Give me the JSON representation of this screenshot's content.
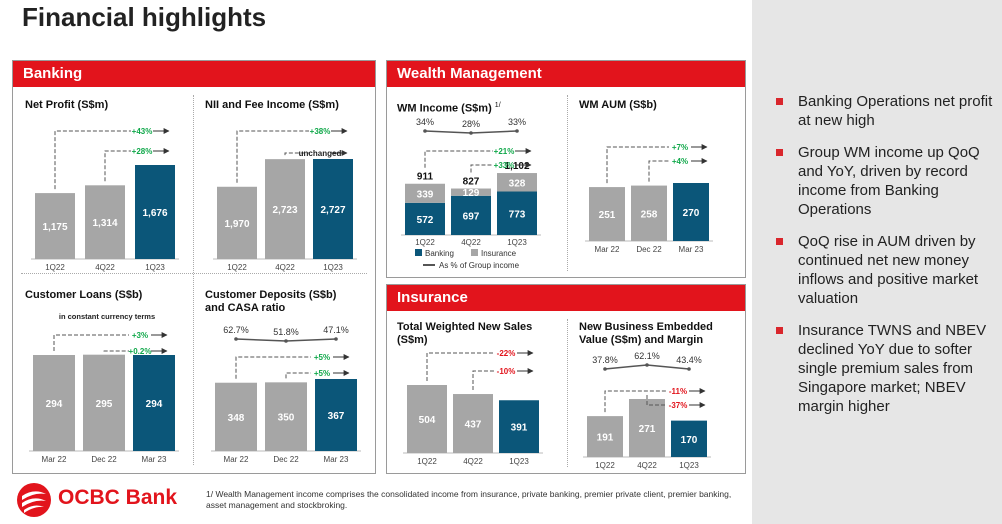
{
  "page": {
    "title": "Financial highlights"
  },
  "banking": {
    "header": "Banking",
    "net_profit": {
      "title": "Net Profit (S$m)",
      "categories": [
        "1Q22",
        "4Q22",
        "1Q23"
      ],
      "values": [
        1175,
        1314,
        1676
      ],
      "value_labels": [
        "1,175",
        "1,314",
        "1,676"
      ],
      "annotations": [
        "+43%",
        "+28%"
      ]
    },
    "nii_fee": {
      "title": "NII and Fee Income (S$m)",
      "categories": [
        "1Q22",
        "4Q22",
        "1Q23"
      ],
      "values": [
        1970,
        2723,
        2727
      ],
      "value_labels": [
        "1,970",
        "2,723",
        "2,727"
      ],
      "annotations": [
        "+38%",
        "unchanged"
      ]
    },
    "customer_loans": {
      "title": "Customer Loans (S$b)",
      "note": "in constant currency terms",
      "categories": [
        "Mar 22",
        "Dec 22",
        "Mar 23"
      ],
      "values": [
        294,
        295,
        294
      ],
      "value_labels": [
        "294",
        "295",
        "294"
      ],
      "annotations": [
        "+3%",
        "+0.2%"
      ]
    },
    "customer_deposits": {
      "title_line1": "Customer Deposits (S$b)",
      "title_line2": "and CASA ratio",
      "categories": [
        "Mar 22",
        "Dec 22",
        "Mar 23"
      ],
      "values": [
        348,
        350,
        367
      ],
      "value_labels": [
        "348",
        "350",
        "367"
      ],
      "casa_ratio_labels": [
        "62.7%",
        "51.8%",
        "47.1%"
      ],
      "annotations": [
        "+5%",
        "+5%"
      ]
    }
  },
  "wealth": {
    "header": "Wealth Management",
    "wm_income": {
      "title": "WM Income (S$m)",
      "footnote_mark": "1/",
      "categories": [
        "1Q22",
        "4Q22",
        "1Q23"
      ],
      "banking": [
        572,
        697,
        773
      ],
      "insurance": [
        339,
        129,
        328
      ],
      "banking_labels": [
        "572",
        "697",
        "773"
      ],
      "insurance_labels": [
        "339",
        "129",
        "328"
      ],
      "totals": [
        "911",
        "827",
        "1,102"
      ],
      "pct_of_group_labels": [
        "34%",
        "28%",
        "33%"
      ],
      "annotations": [
        "+21%",
        "+33%"
      ],
      "legend": {
        "banking": "Banking",
        "insurance": "Insurance",
        "pct": "As % of Group income"
      }
    },
    "wm_aum": {
      "title": "WM AUM (S$b)",
      "categories": [
        "Mar 22",
        "Dec 22",
        "Mar 23"
      ],
      "values": [
        251,
        258,
        270
      ],
      "value_labels": [
        "251",
        "258",
        "270"
      ],
      "annotations": [
        "+7%",
        "+4%"
      ]
    }
  },
  "insurance": {
    "header": "Insurance",
    "twns": {
      "title_line1": "Total Weighted New Sales",
      "title_line2": "(S$m)",
      "categories": [
        "1Q22",
        "4Q22",
        "1Q23"
      ],
      "values": [
        504,
        437,
        391
      ],
      "value_labels": [
        "504",
        "437",
        "391"
      ],
      "annotations": [
        "-22%",
        "-10%"
      ]
    },
    "nbev": {
      "title_line1": "New Business Embedded",
      "title_line2": "Value (S$m) and Margin",
      "categories": [
        "1Q22",
        "4Q22",
        "1Q23"
      ],
      "values": [
        191,
        271,
        170
      ],
      "value_labels": [
        "191",
        "271",
        "170"
      ],
      "margin_labels": [
        "37.8%",
        "62.1%",
        "43.4%"
      ],
      "annotations": [
        "-11%",
        "-37%"
      ]
    }
  },
  "sidebar": {
    "bullets": [
      "Banking Operations net profit at new high",
      "Group WM income up QoQ and YoY, driven by record income from Banking Operations",
      "QoQ rise in AUM driven by continued net new money inflows and positive market valuation",
      "Insurance TWNS and NBEV declined YoY due to softer single premium sales from Singapore market; NBEV margin higher"
    ]
  },
  "footer": {
    "logo_text": "OCBC Bank",
    "footnote": "1/ Wealth Management income comprises the consolidated income from insurance, private banking, premier private client, premier banking, asset management and stockbroking."
  },
  "colors": {
    "red": "#e2141c",
    "gray_bar": "#a6a6a6",
    "teal_bar": "#0b5679",
    "green": "#10a84a"
  },
  "chart_data": [
    {
      "type": "bar",
      "title": "Net Profit (S$m)",
      "categories": [
        "1Q22",
        "4Q22",
        "1Q23"
      ],
      "values": [
        1175,
        1314,
        1676
      ]
    },
    {
      "type": "bar",
      "title": "NII and Fee Income (S$m)",
      "categories": [
        "1Q22",
        "4Q22",
        "1Q23"
      ],
      "values": [
        1970,
        2723,
        2727
      ]
    },
    {
      "type": "bar",
      "title": "Customer Loans (S$b)",
      "categories": [
        "Mar 22",
        "Dec 22",
        "Mar 23"
      ],
      "values": [
        294,
        295,
        294
      ]
    },
    {
      "type": "bar",
      "title": "Customer Deposits (S$b) and CASA ratio",
      "categories": [
        "Mar 22",
        "Dec 22",
        "Mar 23"
      ],
      "values": [
        348,
        350,
        367
      ],
      "series": [
        {
          "values": [
            62.7,
            51.8,
            47.1
          ]
        }
      ]
    },
    {
      "type": "bar",
      "title": "WM Income (S$m)",
      "categories": [
        "1Q22",
        "4Q22",
        "1Q23"
      ],
      "series": [
        {
          "name": "Banking",
          "values": [
            572,
            697,
            773
          ]
        },
        {
          "name": "Insurance",
          "values": [
            339,
            129,
            328
          ]
        },
        {
          "name": "As % of Group income",
          "values": [
            34,
            28,
            33
          ]
        }
      ]
    },
    {
      "type": "bar",
      "title": "WM AUM (S$b)",
      "categories": [
        "Mar 22",
        "Dec 22",
        "Mar 23"
      ],
      "values": [
        251,
        258,
        270
      ]
    },
    {
      "type": "bar",
      "title": "Total Weighted New Sales (S$m)",
      "categories": [
        "1Q22",
        "4Q22",
        "1Q23"
      ],
      "values": [
        504,
        437,
        391
      ]
    },
    {
      "type": "bar",
      "title": "New Business Embedded Value (S$m) and Margin",
      "categories": [
        "1Q22",
        "4Q22",
        "1Q23"
      ],
      "values": [
        191,
        271,
        170
      ],
      "series": [
        {
          "values": [
            37.8,
            62.1,
            43.4
          ]
        }
      ]
    }
  ]
}
